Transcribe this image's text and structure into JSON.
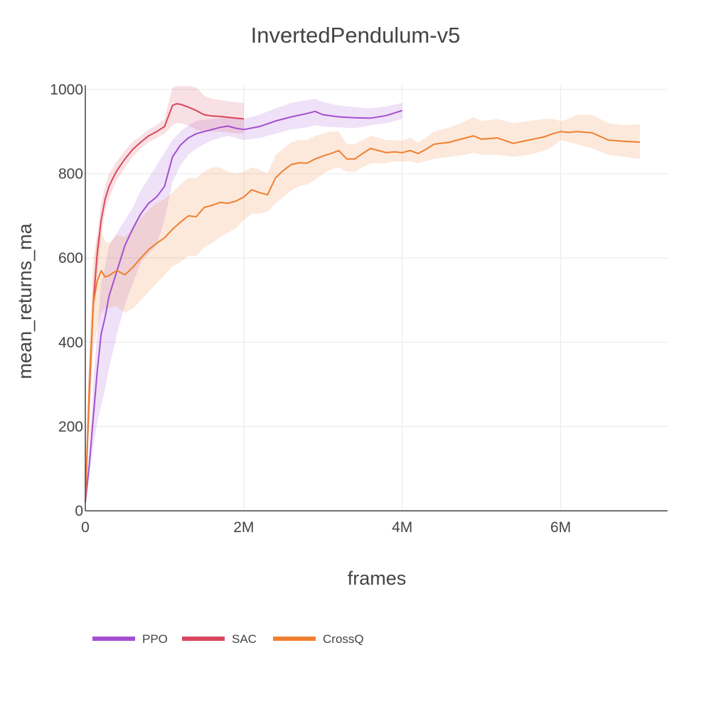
{
  "chart_data": {
    "type": "line",
    "title": "InvertedPendulum-v5",
    "xlabel": "frames",
    "ylabel": "mean_returns_ma",
    "xlim": [
      0,
      7350000
    ],
    "ylim": [
      0,
      1010
    ],
    "x_ticks": [
      {
        "value": 0,
        "label": "0"
      },
      {
        "value": 2000000,
        "label": "2M"
      },
      {
        "value": 4000000,
        "label": "4M"
      },
      {
        "value": 6000000,
        "label": "6M"
      }
    ],
    "y_ticks": [
      {
        "value": 0,
        "label": "0"
      },
      {
        "value": 200,
        "label": "200"
      },
      {
        "value": 400,
        "label": "400"
      },
      {
        "value": 600,
        "label": "600"
      },
      {
        "value": 800,
        "label": "800"
      },
      {
        "value": 1000,
        "label": "1000"
      }
    ],
    "grid": true,
    "legend_position": "bottom-left",
    "series": [
      {
        "name": "PPO",
        "color": "#a34fd0",
        "x": [
          0,
          50000,
          100000,
          150000,
          200000,
          250000,
          300000,
          400000,
          500000,
          600000,
          700000,
          800000,
          900000,
          1000000,
          1100000,
          1200000,
          1300000,
          1400000,
          1500000,
          1600000,
          1700000,
          1800000,
          1900000,
          2000000,
          2200000,
          2400000,
          2600000,
          2800000,
          2900000,
          3000000,
          3200000,
          3400000,
          3600000,
          3800000,
          4000000
        ],
        "values": [
          20,
          110,
          220,
          330,
          420,
          460,
          510,
          570,
          630,
          670,
          705,
          730,
          745,
          770,
          840,
          868,
          885,
          895,
          900,
          905,
          910,
          913,
          908,
          905,
          912,
          925,
          935,
          943,
          948,
          940,
          935,
          933,
          932,
          938,
          950
        ],
        "lower": [
          15,
          80,
          150,
          210,
          250,
          290,
          340,
          420,
          490,
          540,
          590,
          610,
          630,
          690,
          780,
          820,
          845,
          860,
          870,
          880,
          885,
          890,
          885,
          880,
          885,
          895,
          905,
          910,
          915,
          912,
          910,
          908,
          915,
          920,
          930
        ],
        "upper": [
          25,
          140,
          300,
          420,
          540,
          580,
          630,
          660,
          690,
          720,
          760,
          790,
          820,
          850,
          880,
          900,
          915,
          925,
          928,
          930,
          932,
          935,
          933,
          930,
          940,
          955,
          968,
          975,
          978,
          970,
          962,
          958,
          955,
          960,
          968
        ]
      },
      {
        "name": "SAC",
        "color": "#d9475c",
        "x": [
          0,
          50000,
          100000,
          150000,
          200000,
          250000,
          300000,
          350000,
          400000,
          500000,
          600000,
          700000,
          800000,
          900000,
          1000000,
          1100000,
          1150000,
          1200000,
          1300000,
          1400000,
          1500000,
          1600000,
          1700000,
          1800000,
          1900000,
          2000000
        ],
        "values": [
          20,
          280,
          490,
          610,
          690,
          740,
          770,
          790,
          808,
          835,
          858,
          875,
          890,
          900,
          912,
          962,
          966,
          965,
          958,
          950,
          940,
          937,
          936,
          934,
          932,
          930
        ],
        "lower": [
          15,
          230,
          440,
          560,
          650,
          710,
          740,
          765,
          785,
          815,
          840,
          860,
          875,
          885,
          895,
          915,
          920,
          920,
          915,
          905,
          900,
          900,
          900,
          898,
          896,
          895
        ],
        "upper": [
          25,
          330,
          540,
          660,
          730,
          770,
          800,
          815,
          830,
          855,
          876,
          890,
          905,
          915,
          930,
          1005,
          1008,
          1008,
          1008,
          1005,
          985,
          978,
          975,
          972,
          970,
          968
        ]
      },
      {
        "name": "CrossQ",
        "color": "#f07f2f",
        "x": [
          0,
          50000,
          100000,
          150000,
          200000,
          250000,
          300000,
          350000,
          400000,
          500000,
          600000,
          700000,
          800000,
          900000,
          1000000,
          1100000,
          1200000,
          1300000,
          1400000,
          1500000,
          1600000,
          1700000,
          1800000,
          1900000,
          2000000,
          2100000,
          2200000,
          2300000,
          2400000,
          2500000,
          2600000,
          2700000,
          2800000,
          2900000,
          3000000,
          3100000,
          3200000,
          3300000,
          3400000,
          3500000,
          3600000,
          3700000,
          3800000,
          3900000,
          4000000,
          4100000,
          4200000,
          4300000,
          4400000,
          4600000,
          4800000,
          4900000,
          5000000,
          5200000,
          5400000,
          5600000,
          5800000,
          5900000,
          6000000,
          6100000,
          6200000,
          6400000,
          6600000,
          6800000,
          7000000
        ],
        "values": [
          20,
          300,
          490,
          545,
          570,
          555,
          558,
          565,
          570,
          560,
          578,
          600,
          620,
          635,
          648,
          668,
          685,
          700,
          698,
          720,
          725,
          732,
          730,
          735,
          745,
          762,
          755,
          750,
          790,
          808,
          822,
          826,
          825,
          835,
          842,
          848,
          855,
          835,
          835,
          848,
          860,
          855,
          850,
          852,
          850,
          855,
          848,
          858,
          870,
          875,
          885,
          890,
          882,
          885,
          872,
          880,
          888,
          895,
          900,
          898,
          900,
          897,
          880,
          877,
          875
        ],
        "lower": [
          15,
          200,
          380,
          430,
          470,
          480,
          480,
          485,
          485,
          470,
          480,
          500,
          520,
          540,
          560,
          580,
          590,
          605,
          605,
          625,
          635,
          650,
          660,
          670,
          690,
          705,
          705,
          710,
          730,
          745,
          760,
          770,
          775,
          785,
          800,
          810,
          815,
          805,
          805,
          815,
          825,
          825,
          825,
          830,
          828,
          830,
          825,
          830,
          835,
          840,
          845,
          850,
          845,
          845,
          840,
          845,
          855,
          865,
          880,
          875,
          870,
          860,
          845,
          840,
          835
        ],
        "upper": [
          25,
          400,
          600,
          650,
          665,
          640,
          635,
          645,
          655,
          650,
          670,
          695,
          715,
          730,
          740,
          755,
          775,
          790,
          790,
          805,
          815,
          815,
          805,
          800,
          805,
          815,
          810,
          800,
          845,
          860,
          875,
          880,
          880,
          890,
          895,
          900,
          900,
          870,
          870,
          880,
          890,
          885,
          880,
          880,
          878,
          885,
          875,
          885,
          900,
          910,
          925,
          935,
          925,
          930,
          920,
          925,
          930,
          930,
          925,
          930,
          940,
          940,
          920,
          915,
          918
        ]
      }
    ]
  }
}
